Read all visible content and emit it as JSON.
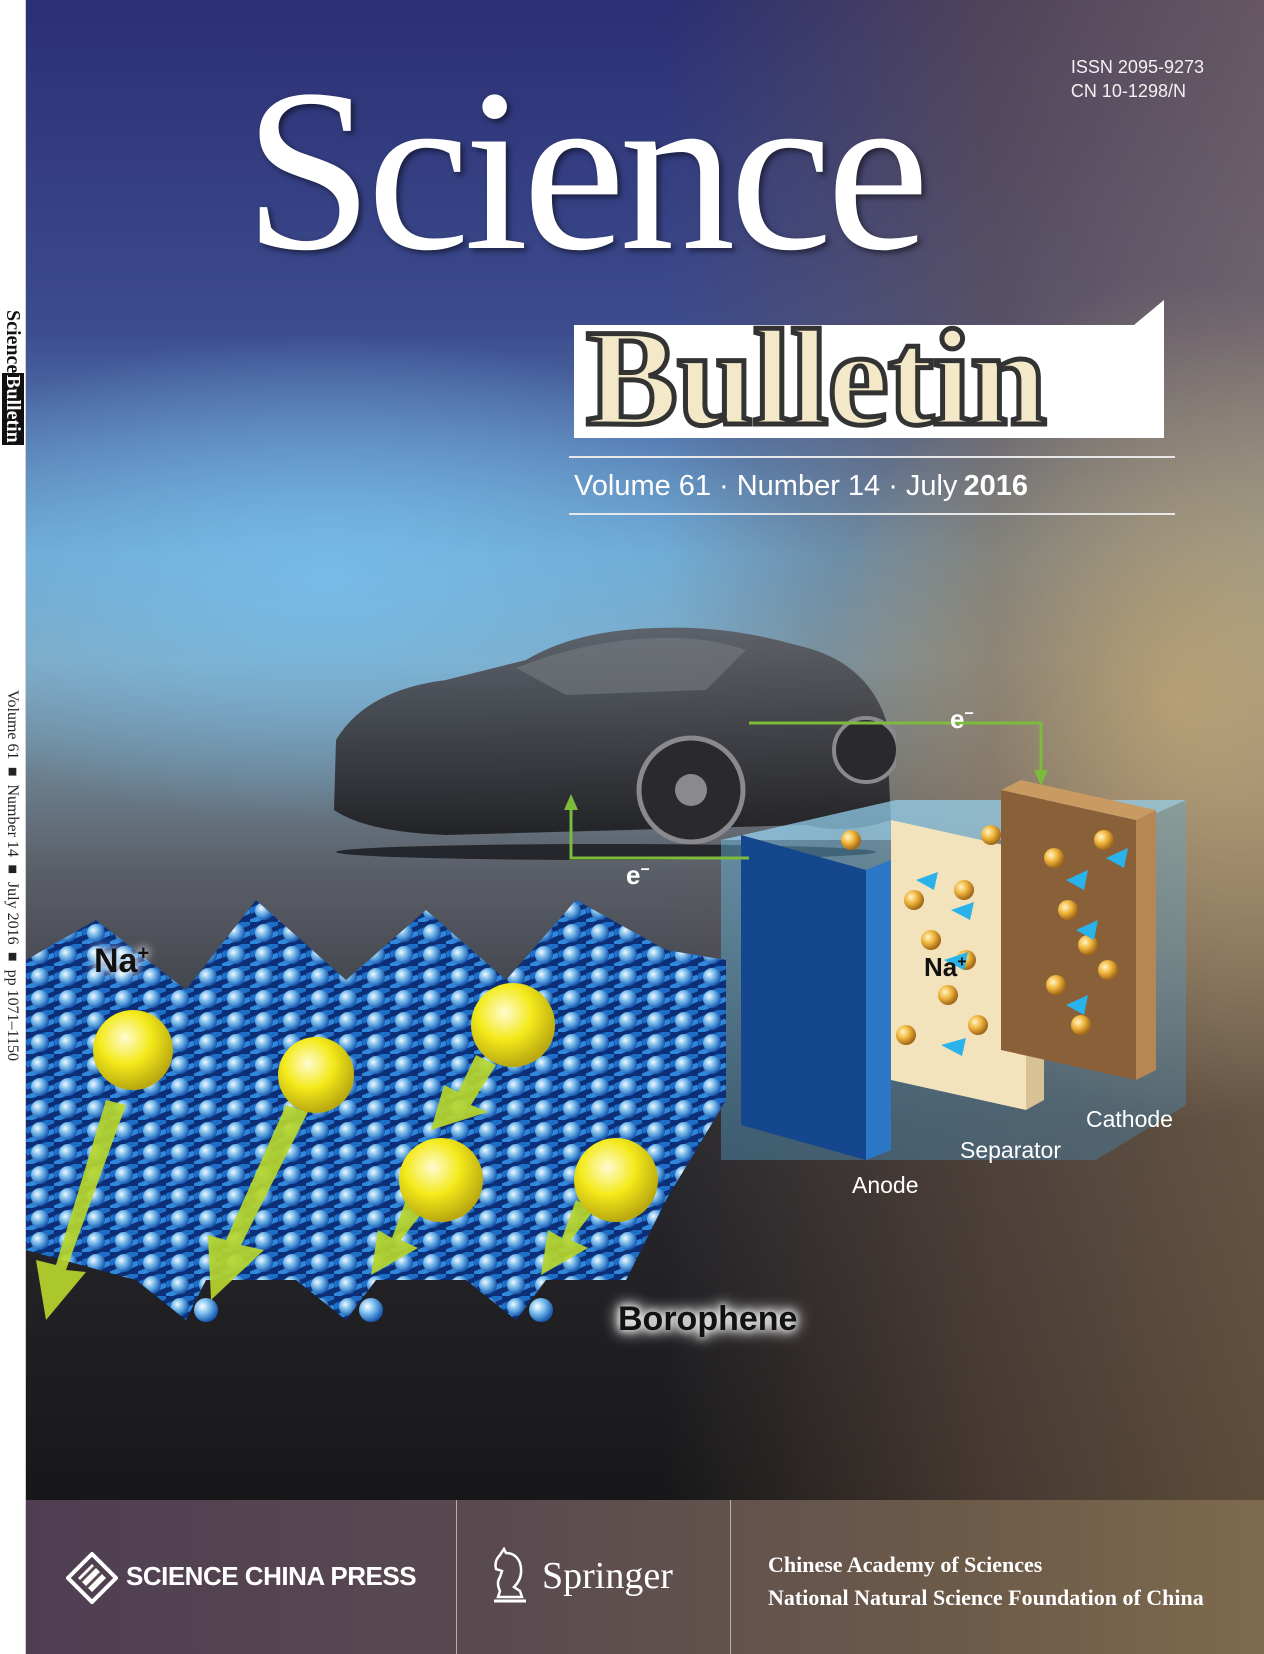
{
  "spine": {
    "title_science": "Science",
    "title_bulletin": "Bulletin",
    "info": "Volume 61 ■ Number 14 ■ July 2016 ■ pp 1071–1150"
  },
  "masthead": {
    "issn": "ISSN  2095-9273",
    "cn": "CN  10-1298/N",
    "title_science": "Science",
    "title_bulletin": "Bulletin",
    "volume": "Volume 61",
    "number": "Number 14",
    "month": "July",
    "year": "2016",
    "separator": "·"
  },
  "illustration": {
    "na_left": "Na",
    "na_mid": "Na",
    "na_sup": "+",
    "e_top": "e",
    "e_left": "e",
    "e_sup": "−",
    "cathode": "Cathode",
    "separator": "Separator",
    "anode": "Anode",
    "borophene": "Borophene"
  },
  "footer": {
    "press": "SCIENCE CHINA PRESS",
    "springer": "Springer",
    "org1": "Chinese Academy of  Sciences",
    "org2": "National Natural Science Foundation of China"
  },
  "colors": {
    "arrow_green": "#7dbb3c",
    "ion_yellow": "#f2e81c",
    "lattice_blue": "#1e6fc8",
    "footer_purple": "#4f3e52"
  }
}
